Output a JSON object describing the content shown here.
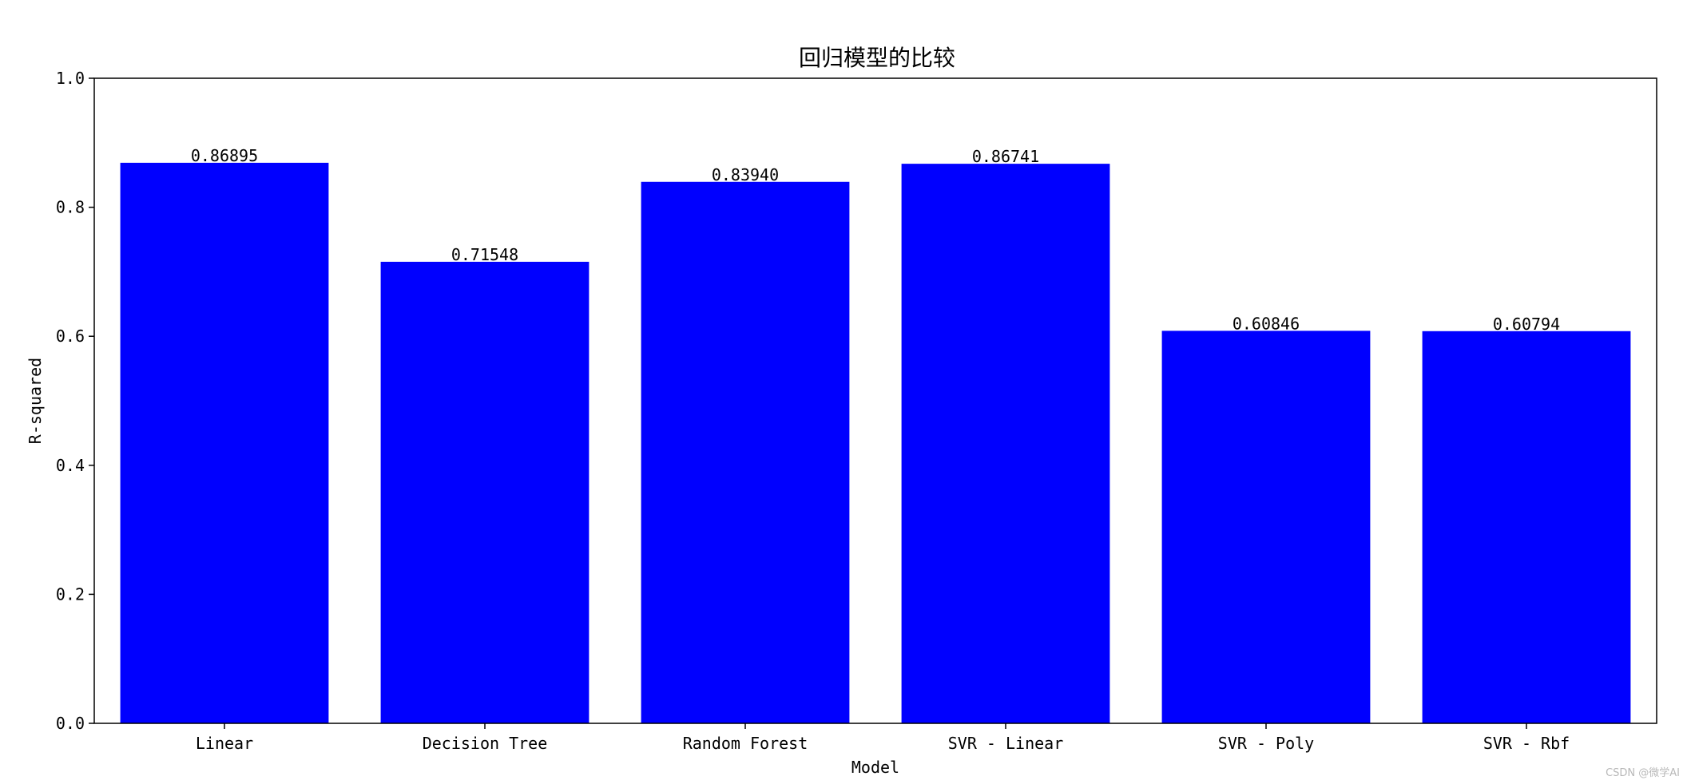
{
  "chart_data": {
    "type": "bar",
    "title": "回归模型的比较",
    "xlabel": "Model",
    "ylabel": "R-squared",
    "categories": [
      "Linear",
      "Decision Tree",
      "Random Forest",
      "SVR - Linear",
      "SVR - Poly",
      "SVR - Rbf"
    ],
    "values": [
      0.86895,
      0.71548,
      0.8394,
      0.86741,
      0.60846,
      0.60794
    ],
    "value_labels": [
      "0.86895",
      "0.71548",
      "0.83940",
      "0.86741",
      "0.60846",
      "0.60794"
    ],
    "ylim": [
      0,
      1.0
    ],
    "yticks": [
      0.0,
      0.2,
      0.4,
      0.6,
      0.8,
      1.0
    ],
    "ytick_labels": [
      "0.0",
      "0.2",
      "0.4",
      "0.6",
      "0.8",
      "1.0"
    ],
    "bar_color": "#0000ff",
    "grid": false,
    "legend": "none"
  },
  "watermark": "CSDN @微学AI"
}
